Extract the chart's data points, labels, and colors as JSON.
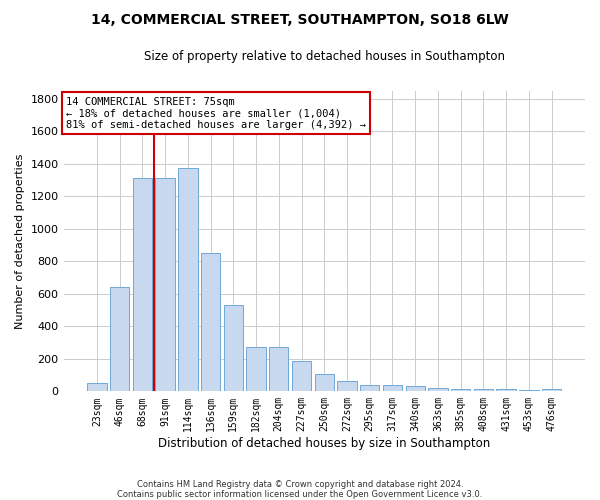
{
  "title_line1": "14, COMMERCIAL STREET, SOUTHAMPTON, SO18 6LW",
  "title_line2": "Size of property relative to detached houses in Southampton",
  "xlabel": "Distribution of detached houses by size in Southampton",
  "ylabel": "Number of detached properties",
  "categories": [
    "23sqm",
    "46sqm",
    "68sqm",
    "91sqm",
    "114sqm",
    "136sqm",
    "159sqm",
    "182sqm",
    "204sqm",
    "227sqm",
    "250sqm",
    "272sqm",
    "295sqm",
    "317sqm",
    "340sqm",
    "363sqm",
    "385sqm",
    "408sqm",
    "431sqm",
    "453sqm",
    "476sqm"
  ],
  "values": [
    50,
    640,
    1310,
    1310,
    1375,
    848,
    530,
    275,
    275,
    185,
    105,
    65,
    40,
    38,
    30,
    22,
    15,
    13,
    12,
    10,
    13
  ],
  "bar_color": "#c8d9ef",
  "bar_edge_color": "#6ea8d5",
  "vline_x_index": 2,
  "vline_color": "#cc0000",
  "annotation_text": "14 COMMERCIAL STREET: 75sqm\n← 18% of detached houses are smaller (1,004)\n81% of semi-detached houses are larger (4,392) →",
  "annotation_box_color": "#ffffff",
  "annotation_edge_color": "#cc0000",
  "ylim": [
    0,
    1850
  ],
  "yticks": [
    0,
    200,
    400,
    600,
    800,
    1000,
    1200,
    1400,
    1600,
    1800
  ],
  "footer_line1": "Contains HM Land Registry data © Crown copyright and database right 2024.",
  "footer_line2": "Contains public sector information licensed under the Open Government Licence v3.0.",
  "background_color": "#ffffff",
  "grid_color": "#cccccc",
  "figsize": [
    6.0,
    5.0
  ],
  "dpi": 100
}
